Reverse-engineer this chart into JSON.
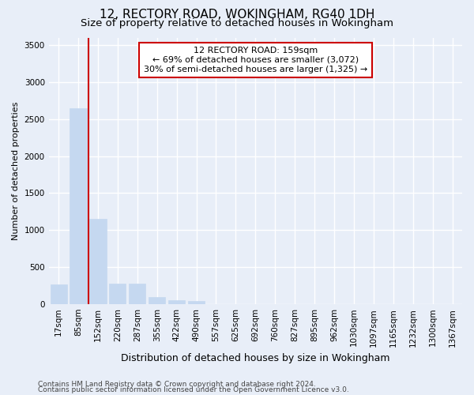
{
  "title1": "12, RECTORY ROAD, WOKINGHAM, RG40 1DH",
  "title2": "Size of property relative to detached houses in Wokingham",
  "xlabel": "Distribution of detached houses by size in Wokingham",
  "ylabel": "Number of detached properties",
  "bar_labels": [
    "17sqm",
    "85sqm",
    "152sqm",
    "220sqm",
    "287sqm",
    "355sqm",
    "422sqm",
    "490sqm",
    "557sqm",
    "625sqm",
    "692sqm",
    "760sqm",
    "827sqm",
    "895sqm",
    "962sqm",
    "1030sqm",
    "1097sqm",
    "1165sqm",
    "1232sqm",
    "1300sqm",
    "1367sqm"
  ],
  "bar_values": [
    270,
    2650,
    1150,
    280,
    280,
    95,
    55,
    40,
    0,
    0,
    0,
    0,
    0,
    0,
    0,
    0,
    0,
    0,
    0,
    0,
    0
  ],
  "bar_color": "#c5d8f0",
  "bar_edge_color": "#c5d8f0",
  "annotation_line1": "12 RECTORY ROAD: 159sqm",
  "annotation_line2": "← 69% of detached houses are smaller (3,072)",
  "annotation_line3": "30% of semi-detached houses are larger (1,325) →",
  "annotation_box_color": "white",
  "annotation_box_edge_color": "#cc0000",
  "vline_color": "#cc0000",
  "vline_x_bar_idx": 1,
  "ylim": [
    0,
    3600
  ],
  "yticks": [
    0,
    500,
    1000,
    1500,
    2000,
    2500,
    3000,
    3500
  ],
  "footer1": "Contains HM Land Registry data © Crown copyright and database right 2024.",
  "footer2": "Contains public sector information licensed under the Open Government Licence v3.0.",
  "bg_color": "#e8eef8",
  "grid_color": "#ffffff",
  "title1_fontsize": 11,
  "title2_fontsize": 9.5,
  "xlabel_fontsize": 9,
  "ylabel_fontsize": 8,
  "tick_fontsize": 7.5,
  "footer_fontsize": 6.5,
  "annotation_fontsize": 8
}
